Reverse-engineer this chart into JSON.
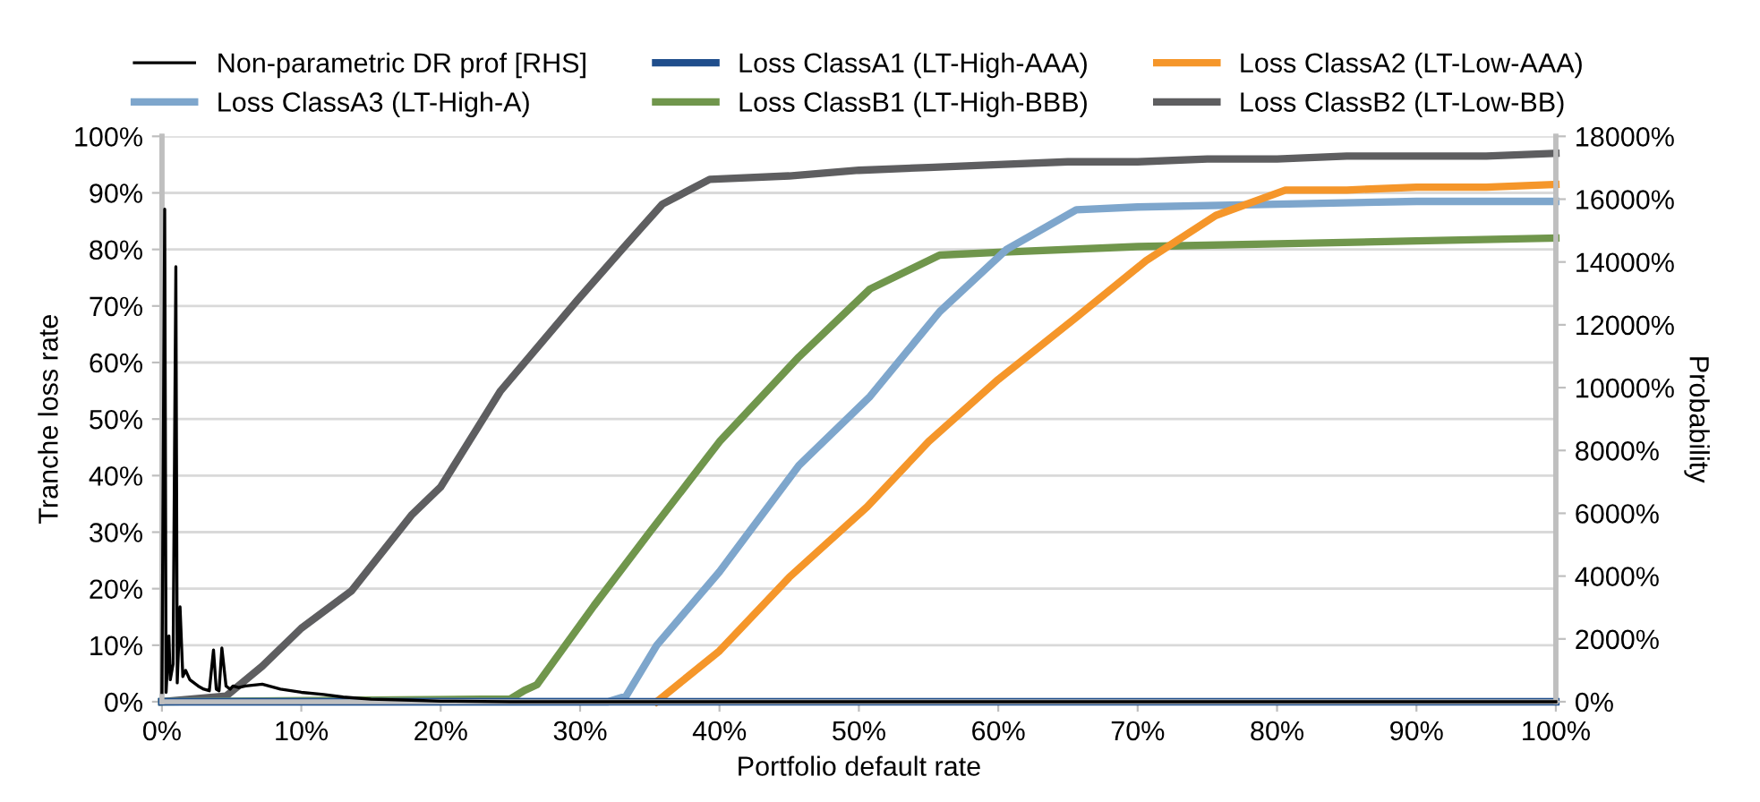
{
  "chart_data": {
    "type": "line",
    "xlabel": "Portfolio default rate",
    "ylabel": "Tranche loss rate",
    "y2label": "Probability",
    "legend": "top",
    "grid": "y",
    "line_style": "solid",
    "marker": "none",
    "xlim": [
      0,
      100
    ],
    "xticks": [
      {
        "value": 0,
        "label": "0%"
      },
      {
        "value": 10,
        "label": "10%"
      },
      {
        "value": 20,
        "label": "20%"
      },
      {
        "value": 30,
        "label": "30%"
      },
      {
        "value": 40,
        "label": "40%"
      },
      {
        "value": 50,
        "label": "50%"
      },
      {
        "value": 60,
        "label": "60%"
      },
      {
        "value": 70,
        "label": "70%"
      },
      {
        "value": 80,
        "label": "80%"
      },
      {
        "value": 90,
        "label": "90%"
      },
      {
        "value": 100,
        "label": "100%"
      }
    ],
    "ylim": [
      0,
      100
    ],
    "yticks": [
      {
        "value": 0,
        "label": "0%"
      },
      {
        "value": 10,
        "label": "10%"
      },
      {
        "value": 20,
        "label": "20%"
      },
      {
        "value": 30,
        "label": "30%"
      },
      {
        "value": 40,
        "label": "40%"
      },
      {
        "value": 50,
        "label": "50%"
      },
      {
        "value": 60,
        "label": "60%"
      },
      {
        "value": 70,
        "label": "70%"
      },
      {
        "value": 80,
        "label": "80%"
      },
      {
        "value": 90,
        "label": "90%"
      },
      {
        "value": 100,
        "label": "100%"
      }
    ],
    "y2lim": [
      0,
      18000
    ],
    "y2ticks": [
      {
        "value": 0,
        "label": "0%"
      },
      {
        "value": 2000,
        "label": "2000%"
      },
      {
        "value": 4000,
        "label": "4000%"
      },
      {
        "value": 6000,
        "label": "6000%"
      },
      {
        "value": 8000,
        "label": "8000%"
      },
      {
        "value": 10000,
        "label": "10000%"
      },
      {
        "value": 12000,
        "label": "12000%"
      },
      {
        "value": 14000,
        "label": "14000%"
      },
      {
        "value": 16000,
        "label": "16000%"
      },
      {
        "value": 18000,
        "label": "18000%"
      }
    ],
    "series": [
      {
        "name": "Non-parametric DR prof [RHS]",
        "color": "#000000",
        "axis": "y2",
        "x": [
          0,
          0.2,
          0.3,
          0.5,
          0.6,
          0.8,
          1.0,
          1.1,
          1.3,
          1.5,
          1.7,
          2.0,
          2.3,
          2.6,
          3.0,
          3.4,
          3.7,
          3.9,
          4.1,
          4.3,
          4.6,
          4.9,
          5.1,
          5.5,
          6.0,
          7.2,
          8.5,
          10,
          11.6,
          13,
          15,
          17.9,
          20,
          25,
          30,
          40,
          50,
          60,
          70,
          80,
          90,
          100
        ],
        "values": [
          300,
          15680,
          300,
          2100,
          700,
          1200,
          13850,
          600,
          3020,
          800,
          1000,
          700,
          600,
          500,
          400,
          350,
          1650,
          400,
          350,
          1710,
          500,
          400,
          500,
          450,
          500,
          560,
          400,
          300,
          230,
          150,
          80,
          50,
          20,
          0,
          0,
          0,
          0,
          0,
          0,
          0,
          0,
          0
        ]
      },
      {
        "name": "Loss ClassA1 (LT-High-AAA)",
        "color": "#1f4e8c",
        "x": [
          0,
          10,
          20,
          30,
          40,
          50,
          60,
          70,
          80,
          90,
          100
        ],
        "values": [
          0,
          0,
          0,
          0,
          0,
          0,
          0,
          0,
          0,
          0,
          0
        ]
      },
      {
        "name": "Loss ClassA2 (LT-Low-AAA)",
        "color": "#f5962a",
        "x": [
          35.5,
          40,
          45,
          50.6,
          55,
          60,
          65.6,
          70.6,
          75.6,
          80.6,
          85,
          90,
          95,
          100
        ],
        "values": [
          0,
          9,
          22,
          34.5,
          46,
          57,
          68,
          78,
          86,
          90.5,
          90.5,
          91,
          91,
          91.5
        ]
      },
      {
        "name": "Loss ClassA3 (LT-High-A)",
        "color": "#7ea6cc",
        "x": [
          0,
          32,
          33.3,
          35.5,
          40,
          45.7,
          50.8,
          55.8,
          60.6,
          65.6,
          70,
          80,
          90,
          100
        ],
        "values": [
          0,
          0,
          1,
          10,
          23,
          41.8,
          54,
          69,
          80,
          87,
          87.5,
          88,
          88.5,
          88.5
        ]
      },
      {
        "name": "Loss ClassB1 (LT-High-BBB)",
        "color": "#70964c",
        "x": [
          0,
          25,
          26,
          26.9,
          31,
          35,
          40,
          45.7,
          50.8,
          55.8,
          60,
          70,
          80,
          90,
          100
        ],
        "values": [
          0,
          0.5,
          2,
          3,
          17,
          30,
          46,
          61,
          73,
          79,
          79.5,
          80.5,
          81,
          81.5,
          82
        ]
      },
      {
        "name": "Loss ClassB2 (LT-Low-BB)",
        "color": "#5e5e60",
        "x": [
          0,
          4.6,
          7.2,
          10,
          13.6,
          17.9,
          20,
          24.3,
          29.8,
          33,
          35.9,
          39.3,
          45,
          50,
          55,
          60,
          65,
          70,
          75,
          80,
          85,
          90,
          95,
          100
        ],
        "values": [
          0,
          1,
          6.3,
          13,
          19.6,
          33,
          38,
          55,
          71,
          80,
          88,
          92.4,
          93,
          94,
          94.5,
          95,
          95.5,
          95.5,
          96,
          96,
          96.5,
          96.5,
          96.5,
          97
        ]
      }
    ]
  }
}
